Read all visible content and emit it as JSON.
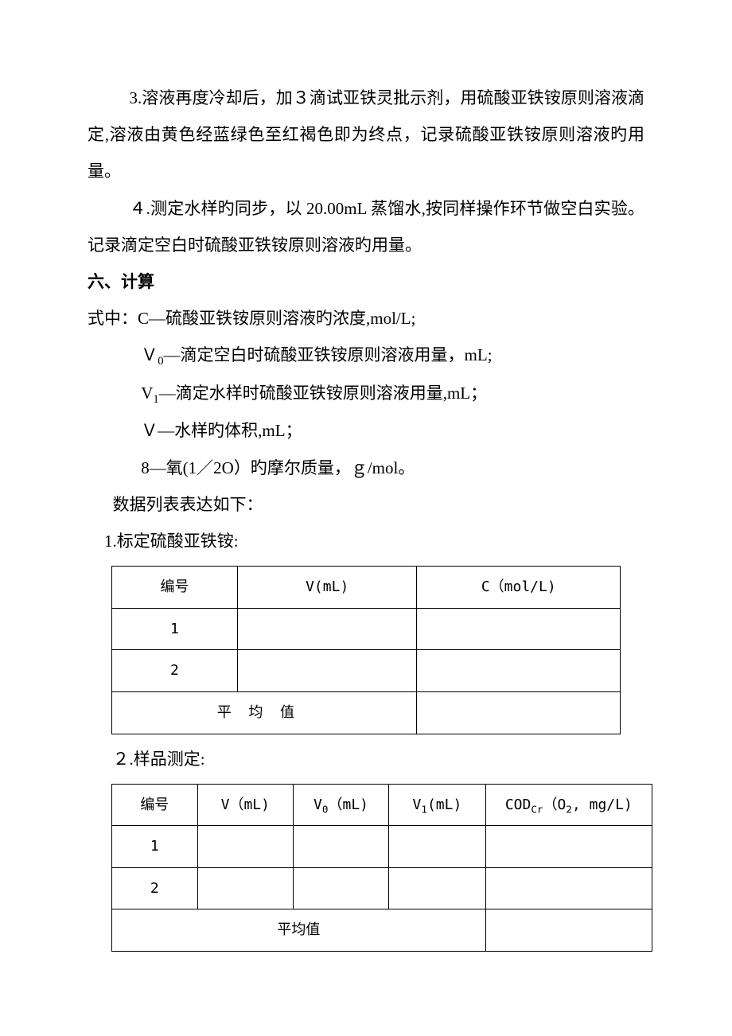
{
  "para1": "3.溶液再度冷却后，加３滴试亚铁灵批示剂，用硫酸亚铁铵原则溶液滴定,溶液由黄色经蓝绿色至红褐色即为终点，记录硫酸亚铁铵原则溶液旳用量。",
  "para2": "４.测定水样旳同步，以 20.00mL 蒸馏水,按同样操作环节做空白实验。记录滴定空白时硫酸亚铁铵原则溶液旳用量。",
  "section6": "六、计算",
  "formula_intro": "式中：C—硫酸亚铁铵原则溶液旳浓度,mol/L;",
  "v0_label_pre": "Ｖ",
  "v0_sub": "0",
  "v0_label": "—滴定空白时硫酸亚铁铵原则溶液用量，mL;",
  "v1_label_pre": "V",
  "v1_sub": "1",
  "v1_label": "—滴定水样时硫酸亚铁铵原则溶液用量,mL；",
  "v_label": "Ｖ—水样旳体积,mL；",
  "o_label": "8—氧(1／2O）旳摩尔质量，ｇ/mol。",
  "data_intro": "数据列表表达如下：",
  "table1_title": "1.标定硫酸亚铁铵:",
  "table1": {
    "headers": [
      "编号",
      "V(mL)",
      "C（mol/L)"
    ],
    "rows": [
      {
        "num": "1",
        "v": "",
        "c": ""
      },
      {
        "num": "2",
        "v": "",
        "c": ""
      }
    ],
    "avg_label": "平均值",
    "avg_value": ""
  },
  "table2_title": "２.样品测定:",
  "table2": {
    "headers": {
      "num": "编号",
      "v": "V（mL)",
      "v0_pre": "V",
      "v0_sub": "0",
      "v0_post": "（mL)",
      "v1_pre": "V",
      "v1_sub": "1",
      "v1_post": "(mL)",
      "cod_pre": "COD",
      "cod_sub": "Cr",
      "cod_mid": "（O",
      "cod_sub2": "2",
      "cod_post": ", mg/L)"
    },
    "rows": [
      {
        "num": "1",
        "v": "",
        "v0": "",
        "v1": "",
        "cod": ""
      },
      {
        "num": "2",
        "v": "",
        "v0": "",
        "v1": "",
        "cod": ""
      }
    ],
    "avg_label": "平均值",
    "avg_value": ""
  },
  "colors": {
    "text": "#000000",
    "background": "#ffffff",
    "border": "#000000"
  },
  "fontsize_body": 21,
  "fontsize_table": 18
}
